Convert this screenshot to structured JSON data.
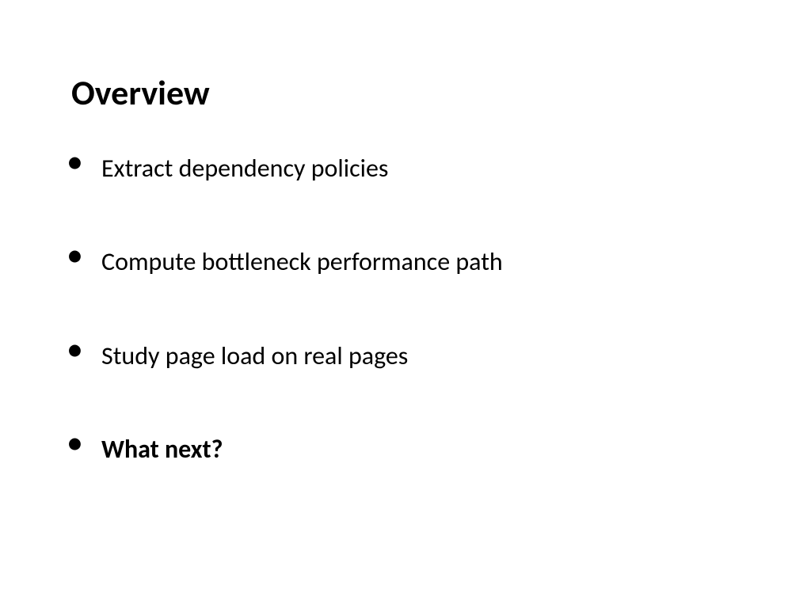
{
  "slide": {
    "title": "Overview",
    "bullets": [
      {
        "text": "Extract dependency policies",
        "bold": false
      },
      {
        "text": "Compute bottleneck performance path",
        "bold": false
      },
      {
        "text": "Study page load on real pages",
        "bold": false
      },
      {
        "text": "What next?",
        "bold": true
      }
    ]
  },
  "styling": {
    "background_color": "#ffffff",
    "text_color": "#000000",
    "title_fontsize": 44,
    "title_fontweight": 700,
    "bullet_fontsize": 32,
    "font_family": "Calibri"
  }
}
